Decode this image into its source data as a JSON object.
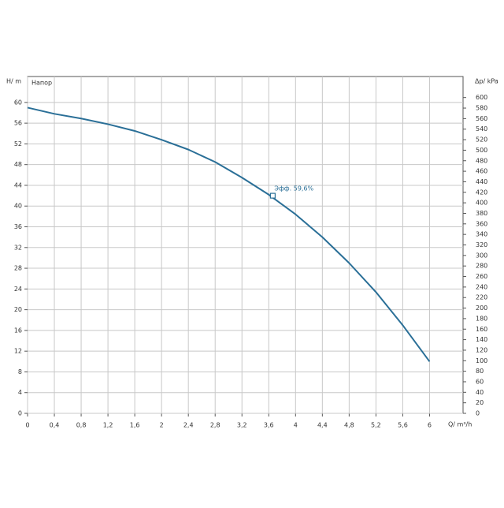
{
  "chart_data": {
    "type": "line",
    "y_label": "H/ m",
    "y2_label": "Δp/ kPa",
    "x_label": "Q/ m³/h",
    "x": [
      0,
      0.4,
      0.8,
      1.2,
      1.6,
      2,
      2.4,
      2.8,
      3.2,
      3.6,
      4,
      4.4,
      4.8,
      5.2,
      5.6,
      6
    ],
    "series": [
      {
        "name": "Напор",
        "color": "#2a6f97",
        "values": [
          59,
          57.8,
          56.9,
          55.8,
          54.5,
          52.8,
          50.9,
          48.5,
          45.5,
          42.2,
          38.4,
          34,
          29,
          23.4,
          17,
          10
        ]
      }
    ],
    "annotations": [
      {
        "text": "Эфф. 59,6%",
        "x": 3.66,
        "y": 42
      }
    ],
    "xlim": [
      0,
      6.5
    ],
    "xticks": [
      0,
      {
        "value": 0.4,
        "label": "0,4"
      },
      {
        "value": 0.8,
        "label": "0,8"
      },
      {
        "value": 1.2,
        "label": "1,2"
      },
      {
        "value": 1.6,
        "label": "1,6"
      },
      2,
      {
        "value": 2.4,
        "label": "2,4"
      },
      {
        "value": 2.8,
        "label": "2,8"
      },
      {
        "value": 3.2,
        "label": "3,2"
      },
      {
        "value": 3.6,
        "label": "3,6"
      },
      4,
      {
        "value": 4.4,
        "label": "4,4"
      },
      {
        "value": 4.8,
        "label": "4,8"
      },
      {
        "value": 5.2,
        "label": "5,2"
      },
      {
        "value": 5.6,
        "label": "5,6"
      },
      6
    ],
    "ylim": [
      0,
      65
    ],
    "yticks": [
      0,
      4,
      8,
      12,
      16,
      20,
      24,
      28,
      32,
      36,
      40,
      44,
      48,
      52,
      56,
      60
    ],
    "y2lim": [
      0,
      640
    ],
    "y2ticks": [
      0,
      20,
      40,
      60,
      80,
      100,
      120,
      140,
      160,
      180,
      200,
      220,
      240,
      260,
      280,
      300,
      320,
      340,
      360,
      380,
      400,
      420,
      440,
      460,
      480,
      500,
      520,
      540,
      560,
      580,
      600
    ],
    "grid": true
  }
}
